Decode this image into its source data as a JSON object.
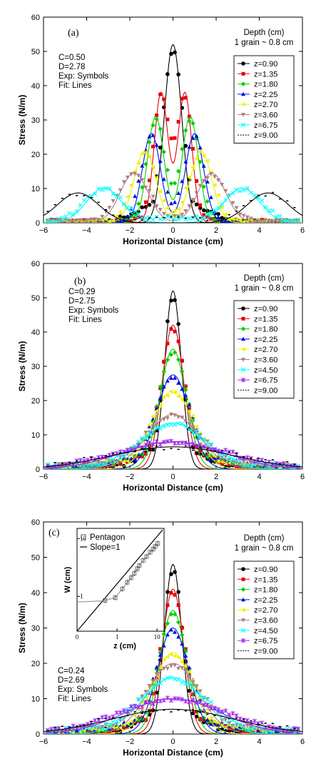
{
  "chart_data": [
    {
      "type": "line",
      "panel_label": "(a)",
      "xlabel": "Horizontal Distance (cm)",
      "ylabel": "Stress (N/m)",
      "xlim": [
        -6,
        6
      ],
      "ylim": [
        0,
        60
      ],
      "xticks": [
        -6,
        -4,
        -2,
        0,
        2,
        4,
        6
      ],
      "yticks": [
        0,
        10,
        20,
        30,
        40,
        50,
        60
      ],
      "params": [
        "C=0.50",
        "D=2.78",
        "Exp: Symbols",
        "Fit:   Lines"
      ],
      "depth_header": [
        "Depth (cm)",
        "1 grain ~ 0.8 cm"
      ],
      "legend_position": "top-right",
      "series": [
        {
          "name": "z=0.90",
          "color": "#000000",
          "marker": "circle",
          "fit": {
            "peaks": [
              0
            ],
            "amp": 52,
            "sigma": 0.4
          }
        },
        {
          "name": "z=1.35",
          "color": "#e8000b",
          "marker": "square",
          "fit": {
            "peaks": [
              -0.55,
              0.55
            ],
            "amp": 38,
            "sigma": 0.32
          }
        },
        {
          "name": "z=1.80",
          "color": "#00d000",
          "marker": "diamond",
          "fit": {
            "peaks": [
              -0.8,
              0.8
            ],
            "amp": 31,
            "sigma": 0.38
          }
        },
        {
          "name": "z=2.25",
          "color": "#0010e0",
          "marker": "triangle",
          "fit": {
            "peaks": [
              -1.0,
              1.0
            ],
            "amp": 26,
            "sigma": 0.42
          }
        },
        {
          "name": "z=2.70",
          "color": "#f0f000",
          "marker": "triangle-left",
          "fit": {
            "peaks": [
              -1.3,
              1.3
            ],
            "amp": 21,
            "sigma": 0.5
          }
        },
        {
          "name": "z=3.60",
          "color": "#b08080",
          "marker": "triangle-down",
          "fit": {
            "peaks": [
              -1.8,
              1.8
            ],
            "amp": 14.5,
            "sigma": 0.65
          }
        },
        {
          "name": "z=6.75",
          "color": "#00ffff",
          "marker": "cross",
          "fit": {
            "peaks": [
              -3.2,
              3.2
            ],
            "amp": 10.2,
            "sigma": 0.8
          }
        },
        {
          "name": "z=9.00",
          "color": "#000000",
          "marker": "dot",
          "fit": {
            "peaks": [
              -4.4,
              4.4
            ],
            "amp": 8.7,
            "sigma": 0.95
          }
        }
      ]
    },
    {
      "type": "line",
      "panel_label": "(b)",
      "xlabel": "Horizontal Distance (cm)",
      "ylabel": "Stress (N/m)",
      "xlim": [
        -6,
        6
      ],
      "ylim": [
        0,
        60
      ],
      "xticks": [
        -6,
        -4,
        -2,
        0,
        2,
        4,
        6
      ],
      "yticks": [
        0,
        10,
        20,
        30,
        40,
        50,
        60
      ],
      "params": [
        "C=0.29",
        "D=2.75",
        "Exp: Symbols",
        "Fit:  Lines"
      ],
      "depth_header": [
        "Depth (cm)",
        "1 grain ~ 0.8 cm"
      ],
      "legend_position": "top-right",
      "series": [
        {
          "name": "z=0.90",
          "color": "#000000",
          "marker": "circle",
          "amp": 52,
          "sigma": 0.38
        },
        {
          "name": "z=1.35",
          "color": "#e8000b",
          "marker": "square",
          "amp": 42,
          "sigma": 0.5
        },
        {
          "name": "z=1.80",
          "color": "#00d000",
          "marker": "diamond",
          "amp": 35,
          "sigma": 0.6
        },
        {
          "name": "z=2.25",
          "color": "#0010e0",
          "marker": "triangle",
          "amp": 27.5,
          "sigma": 0.75
        },
        {
          "name": "z=2.70",
          "color": "#f0f000",
          "marker": "triangle-left",
          "amp": 23,
          "sigma": 0.9
        },
        {
          "name": "z=3.60",
          "color": "#b08080",
          "marker": "triangle-down",
          "amp": 16,
          "sigma": 1.2
        },
        {
          "name": "z=4.50",
          "color": "#00ffff",
          "marker": "cross",
          "amp": 13.5,
          "sigma": 1.4
        },
        {
          "name": "z=6.75",
          "color": "#a020f0",
          "marker": "star",
          "amp": 8,
          "sigma": 2.3
        },
        {
          "name": "z=9.00",
          "color": "#000000",
          "marker": "dot",
          "amp": 6.5,
          "sigma": 2.8
        }
      ]
    },
    {
      "type": "line",
      "panel_label": "(c)",
      "xlabel": "Horizontal Distance (cm)",
      "ylabel": "Stress (N/m)",
      "xlim": [
        -6,
        6
      ],
      "ylim": [
        0,
        60
      ],
      "xticks": [
        -6,
        -4,
        -2,
        0,
        2,
        4,
        6
      ],
      "yticks": [
        0,
        10,
        20,
        30,
        40,
        50,
        60
      ],
      "params": [
        "C=0.24",
        "D=2.69",
        "Exp: Symbols",
        "Fit:  Lines"
      ],
      "depth_header": [
        "Depth (cm)",
        "1 grain ~ 0.8 cm"
      ],
      "legend_position": "right",
      "series": [
        {
          "name": "z=0.90",
          "color": "#000000",
          "marker": "circle",
          "amp": 48,
          "sigma": 0.4
        },
        {
          "name": "z=1.35",
          "color": "#e8000b",
          "marker": "square",
          "amp": 41,
          "sigma": 0.5
        },
        {
          "name": "z=1.80",
          "color": "#00d000",
          "marker": "diamond",
          "amp": 35,
          "sigma": 0.6
        },
        {
          "name": "z=2.25",
          "color": "#0010e0",
          "marker": "triangle",
          "amp": 30,
          "sigma": 0.72
        },
        {
          "name": "z=2.70",
          "color": "#f0f000",
          "marker": "triangle-left",
          "amp": 23,
          "sigma": 0.9
        },
        {
          "name": "z=3.60",
          "color": "#b08080",
          "marker": "triangle-down",
          "amp": 20,
          "sigma": 1.15
        },
        {
          "name": "z=4.50",
          "color": "#00ffff",
          "marker": "cross",
          "amp": 16,
          "sigma": 1.4
        },
        {
          "name": "z=6.75",
          "color": "#a020f0",
          "marker": "star",
          "amp": 10,
          "sigma": 2.2
        },
        {
          "name": "z=9.00",
          "color": "#000000",
          "marker": "dot",
          "amp": 7,
          "sigma": 2.8
        }
      ],
      "inset": {
        "type": "scatter",
        "xlabel": "z (cm)",
        "ylabel": "W (cm)",
        "xscale": "log",
        "yscale": "log",
        "xticks": [
          "0",
          "1",
          "10"
        ],
        "yticks": [
          "1",
          "10"
        ],
        "legend": [
          "Pentagon",
          "Slope=1"
        ],
        "points_z": [
          0.5,
          0.9,
          1.35,
          1.8,
          2.25,
          2.7,
          3.2,
          3.6,
          4.5,
          5.5,
          6.75,
          8.0,
          9.0,
          10.5
        ],
        "points_w": [
          0.85,
          0.95,
          1.35,
          1.75,
          2.1,
          2.5,
          3.0,
          3.4,
          4.2,
          4.9,
          5.8,
          6.6,
          7.3,
          8.2
        ]
      }
    }
  ]
}
